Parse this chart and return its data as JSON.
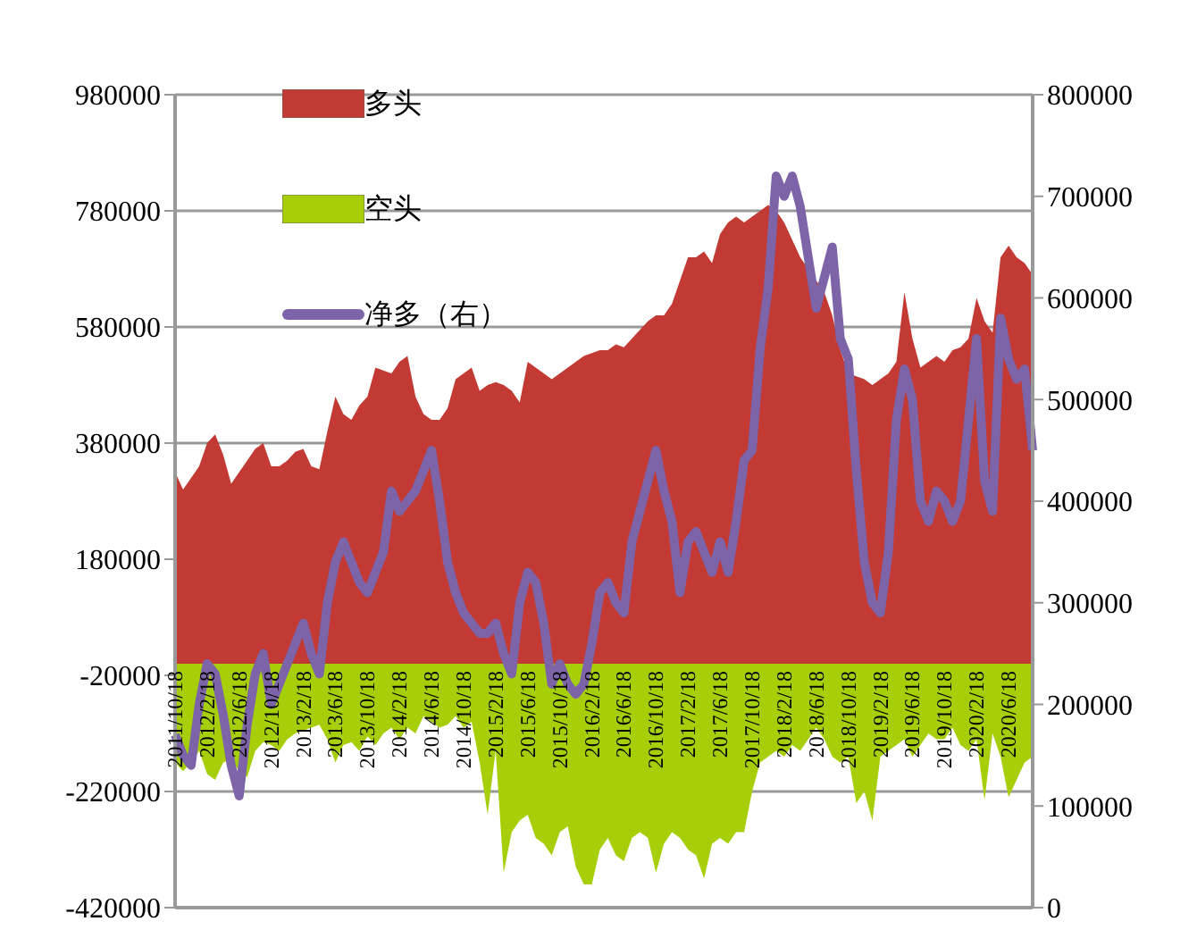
{
  "chart_data": {
    "type": "area",
    "categories": [
      "2011/10/18",
      null,
      null,
      null,
      "2012/2/18",
      null,
      null,
      null,
      "2012/6/18",
      null,
      null,
      null,
      "2012/10/18",
      null,
      null,
      null,
      "2013/2/18",
      null,
      null,
      null,
      "2013/6/18",
      null,
      null,
      null,
      "2013/10/18",
      null,
      null,
      null,
      "2014/2/18",
      null,
      null,
      null,
      "2014/6/18",
      null,
      null,
      null,
      "2014/10/18",
      null,
      null,
      null,
      "2015/2/18",
      null,
      null,
      null,
      "2015/6/18",
      null,
      null,
      null,
      "2015/10/18",
      null,
      null,
      null,
      "2016/2/18",
      null,
      null,
      null,
      "2016/6/18",
      null,
      null,
      null,
      "2016/10/18",
      null,
      null,
      null,
      "2017/2/18",
      null,
      null,
      null,
      "2017/6/18",
      null,
      null,
      null,
      "2017/10/18",
      null,
      null,
      null,
      "2018/2/18",
      null,
      null,
      null,
      "2018/6/18",
      null,
      null,
      null,
      "2018/10/18",
      null,
      null,
      null,
      "2019/2/18",
      null,
      null,
      null,
      "2019/6/18",
      null,
      null,
      null,
      "2019/10/18",
      null,
      null,
      null,
      "2020/2/18",
      null,
      null,
      null,
      "2020/6/18",
      null,
      null,
      null
    ],
    "series": [
      {
        "name": "多头",
        "color": "#c23a33",
        "values": [
          330000,
          300000,
          320000,
          340000,
          380000,
          395000,
          360000,
          310000,
          330000,
          350000,
          370000,
          380000,
          340000,
          340000,
          350000,
          365000,
          370000,
          340000,
          335000,
          400000,
          460000,
          430000,
          420000,
          445000,
          460000,
          510000,
          505000,
          500000,
          520000,
          530000,
          460000,
          430000,
          420000,
          420000,
          440000,
          490000,
          500000,
          510000,
          470000,
          480000,
          485000,
          480000,
          470000,
          450000,
          520000,
          510000,
          500000,
          490000,
          500000,
          510000,
          520000,
          530000,
          535000,
          540000,
          540000,
          550000,
          545000,
          560000,
          575000,
          590000,
          600000,
          600000,
          620000,
          660000,
          700000,
          700000,
          710000,
          690000,
          740000,
          760000,
          770000,
          760000,
          770000,
          780000,
          790000,
          780000,
          760000,
          730000,
          700000,
          680000,
          660000,
          640000,
          600000,
          540000,
          500000,
          495000,
          490000,
          480000,
          490000,
          500000,
          520000,
          640000,
          560000,
          510000,
          520000,
          530000,
          520000,
          540000,
          545000,
          560000,
          630000,
          590000,
          570000,
          700000,
          720000,
          700000,
          690000,
          670000
        ]
      },
      {
        "name": "空头",
        "color": "#a6cf0a",
        "values": [
          -170000,
          -185000,
          -170000,
          -150000,
          -190000,
          -200000,
          -170000,
          -165000,
          -185000,
          -195000,
          -150000,
          -135000,
          -140000,
          -150000,
          -130000,
          -120000,
          -115000,
          -110000,
          -105000,
          -130000,
          -170000,
          -140000,
          -135000,
          -150000,
          -125000,
          -140000,
          -120000,
          -110000,
          -130000,
          -110000,
          -120000,
          -90000,
          -100000,
          -110000,
          -105000,
          -90000,
          -110000,
          -100000,
          -170000,
          -260000,
          -150000,
          -360000,
          -290000,
          -270000,
          -260000,
          -300000,
          -310000,
          -330000,
          -290000,
          -280000,
          -350000,
          -380000,
          -380000,
          -320000,
          -300000,
          -330000,
          -340000,
          -300000,
          -290000,
          -300000,
          -360000,
          -310000,
          -290000,
          -300000,
          -320000,
          -330000,
          -370000,
          -310000,
          -300000,
          -310000,
          -290000,
          -290000,
          -220000,
          -170000,
          -160000,
          -150000,
          -160000,
          -140000,
          -150000,
          -130000,
          -110000,
          -130000,
          -160000,
          -170000,
          -160000,
          -240000,
          -220000,
          -270000,
          -160000,
          -150000,
          -140000,
          -130000,
          -160000,
          -140000,
          -120000,
          -130000,
          -130000,
          -110000,
          -140000,
          -150000,
          -130000,
          -235000,
          -120000,
          -160000,
          -230000,
          -200000,
          -170000,
          -160000
        ]
      },
      {
        "name": "净多（右）",
        "type": "line",
        "axis": "y2",
        "color": "#7d63a8",
        "values": [
          170000,
          150000,
          140000,
          200000,
          240000,
          230000,
          190000,
          140000,
          110000,
          180000,
          230000,
          250000,
          200000,
          220000,
          240000,
          260000,
          280000,
          250000,
          230000,
          300000,
          340000,
          360000,
          340000,
          320000,
          310000,
          330000,
          350000,
          410000,
          390000,
          400000,
          410000,
          430000,
          450000,
          400000,
          340000,
          310000,
          290000,
          280000,
          270000,
          270000,
          280000,
          250000,
          230000,
          300000,
          330000,
          320000,
          280000,
          220000,
          240000,
          220000,
          210000,
          220000,
          260000,
          310000,
          320000,
          300000,
          290000,
          360000,
          390000,
          420000,
          450000,
          410000,
          380000,
          310000,
          360000,
          370000,
          350000,
          330000,
          360000,
          330000,
          380000,
          440000,
          450000,
          550000,
          610000,
          720000,
          700000,
          720000,
          690000,
          640000,
          590000,
          620000,
          650000,
          560000,
          540000,
          430000,
          340000,
          300000,
          290000,
          350000,
          480000,
          530000,
          500000,
          400000,
          380000,
          410000,
          400000,
          380000,
          400000,
          480000,
          560000,
          420000,
          390000,
          580000,
          540000,
          520000,
          530000,
          450000
        ]
      }
    ],
    "ylim": [
      -420000,
      980000
    ],
    "yticks": [
      -420000,
      -220000,
      -20000,
      180000,
      380000,
      580000,
      780000,
      980000
    ],
    "y2lim": [
      0,
      800000
    ],
    "y2ticks": [
      0,
      100000,
      200000,
      300000,
      400000,
      500000,
      600000,
      700000,
      800000
    ],
    "grid": "y",
    "legend": "top left",
    "marker": "none"
  }
}
